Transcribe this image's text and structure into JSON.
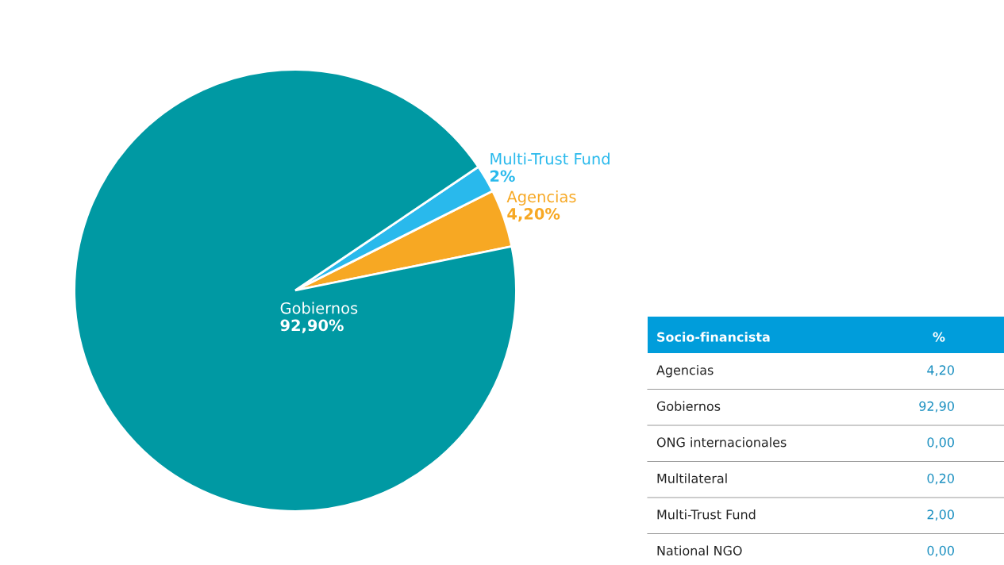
{
  "chart_data": [
    {
      "type": "pie",
      "categories": [
        "Agencias",
        "Multi-Trust Fund",
        "Gobiernos"
      ],
      "values": [
        4.2,
        2,
        92.9
      ],
      "colors": [
        "#f7a823",
        "#29b9ec",
        "#0099a3"
      ],
      "value_labels": [
        "4,20%",
        "2%",
        "92,90%"
      ]
    },
    {
      "type": "other",
      "annotations": [
        "Socio-financista",
        "%"
      ],
      "categories": [
        "Agencias",
        "Gobiernos",
        "ONG internacionales",
        "Multilateral",
        "Multi-Trust Fund",
        "National NGO"
      ],
      "value_labels": [
        "4,20",
        "92,90",
        "0,00",
        "0,20",
        "2,00",
        "0,00"
      ]
    }
  ]
}
